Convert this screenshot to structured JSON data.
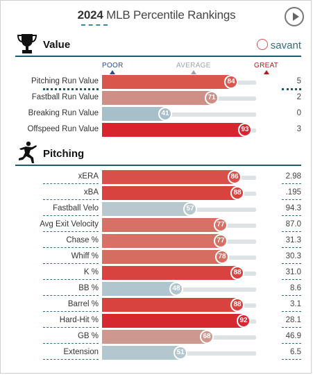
{
  "header": {
    "year": "2024",
    "title": "MLB Percentile Rankings"
  },
  "brand": {
    "name": "savant"
  },
  "scale": {
    "poor": "POOR",
    "average": "AVERAGE",
    "great": "GREAT"
  },
  "sections": {
    "value": {
      "label": "Value",
      "rows": [
        {
          "name": "Pitching Run Value",
          "pct": 84,
          "value": "5",
          "color": "#d8564c",
          "selected": true
        },
        {
          "name": "Fastball Run Value",
          "pct": 71,
          "value": "2",
          "color": "#cf8f86"
        },
        {
          "name": "Breaking Run Value",
          "pct": 41,
          "value": "0",
          "color": "#a7bfc9"
        },
        {
          "name": "Offspeed Run Value",
          "pct": 93,
          "value": "3",
          "color": "#d6252e"
        }
      ]
    },
    "pitching": {
      "label": "Pitching",
      "rows": [
        {
          "name": "xERA",
          "pct": 86,
          "value": "2.98",
          "color": "#d94f4a"
        },
        {
          "name": "xBA",
          "pct": 88,
          "value": ".195",
          "color": "#d9433f"
        },
        {
          "name": "Fastball Velo",
          "pct": 57,
          "value": "94.3",
          "color": "#b8c8cf"
        },
        {
          "name": "Avg Exit Velocity",
          "pct": 77,
          "value": "87.0",
          "color": "#d77165"
        },
        {
          "name": "Chase %",
          "pct": 77,
          "value": "31.3",
          "color": "#d77165"
        },
        {
          "name": "Whiff %",
          "pct": 78,
          "value": "30.3",
          "color": "#d66d61"
        },
        {
          "name": "K %",
          "pct": 88,
          "value": "31.0",
          "color": "#d9433f"
        },
        {
          "name": "BB %",
          "pct": 48,
          "value": "8.6",
          "color": "#b0c6ce"
        },
        {
          "name": "Barrel %",
          "pct": 88,
          "value": "3.1",
          "color": "#d9433f"
        },
        {
          "name": "Hard-Hit %",
          "pct": 92,
          "value": "28.1",
          "color": "#d6282f"
        },
        {
          "name": "GB %",
          "pct": 68,
          "value": "46.9",
          "color": "#cf988e"
        },
        {
          "name": "Extension",
          "pct": 51,
          "value": "6.5",
          "color": "#b3c7ce"
        }
      ]
    }
  }
}
